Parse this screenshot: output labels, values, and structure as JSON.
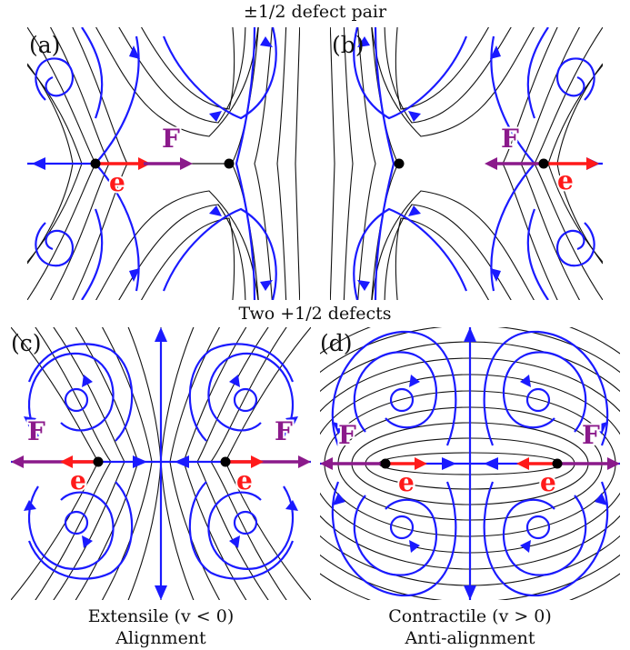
{
  "top_title": "±1/2 defect pair",
  "middle_title": "Two +1/2 defects",
  "captions": {
    "left_line1": "Extensile (v < 0)",
    "left_line2": "Alignment",
    "right_line1": "Contractile (v > 0)",
    "right_line2": "Anti-alignment"
  },
  "panels": [
    {
      "label": "(a)",
      "force_label": "F",
      "polarity_label": "e"
    },
    {
      "label": "(b)",
      "force_label": "F",
      "polarity_label": "e"
    },
    {
      "label": "(c)",
      "force_label": "F",
      "polarity_label": "e"
    },
    {
      "label": "(d)",
      "force_label": "F",
      "polarity_label": "e"
    }
  ],
  "colors": {
    "director": "#111111",
    "flow": "#1a1aff",
    "force": "#8b1a8b",
    "polarity": "#ff1a1a",
    "defect_core": "#000000"
  }
}
